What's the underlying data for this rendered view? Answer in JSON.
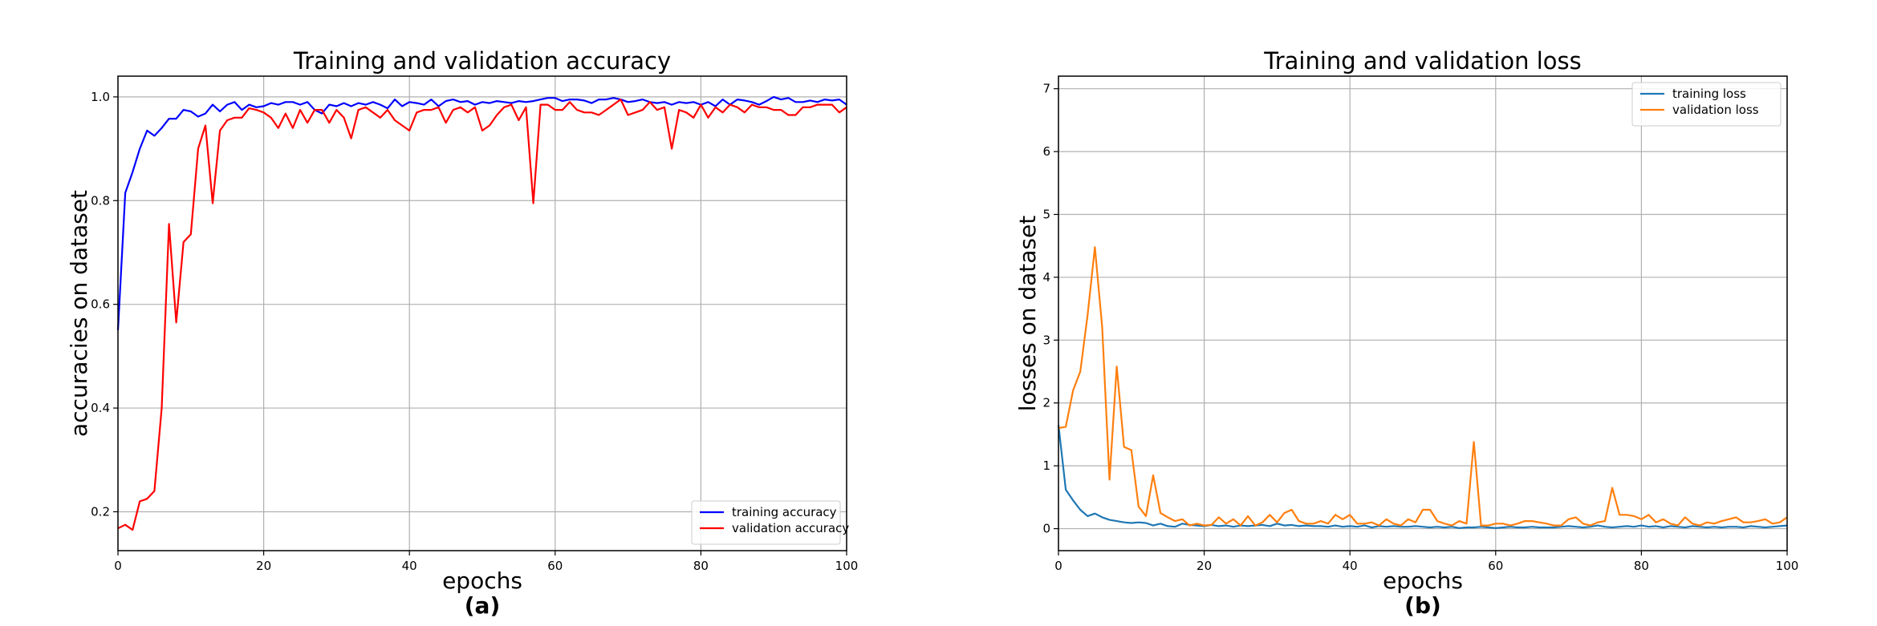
{
  "chart_data": [
    {
      "type": "line",
      "title": "Training and validation accuracy",
      "xlabel": "epochs",
      "ylabel": "accuracies on dataset",
      "panel_label": "(a)",
      "xlim": [
        0,
        100
      ],
      "ylim": [
        0.125,
        1.04
      ],
      "xticks": [
        0,
        20,
        40,
        60,
        80,
        100
      ],
      "yticks": [
        0.2,
        0.4,
        0.6,
        0.8,
        1.0
      ],
      "ytick_labels": [
        "0.2",
        "0.4",
        "0.6",
        "0.8",
        "1.0"
      ],
      "grid": true,
      "legend_position": "lower-right",
      "series": [
        {
          "name": "training accuracy",
          "color": "#0000ff",
          "values": [
            0.55,
            0.815,
            0.855,
            0.9,
            0.935,
            0.925,
            0.94,
            0.958,
            0.958,
            0.975,
            0.972,
            0.962,
            0.968,
            0.985,
            0.972,
            0.985,
            0.99,
            0.975,
            0.985,
            0.98,
            0.982,
            0.988,
            0.985,
            0.99,
            0.99,
            0.985,
            0.99,
            0.975,
            0.968,
            0.985,
            0.982,
            0.988,
            0.982,
            0.988,
            0.985,
            0.99,
            0.985,
            0.978,
            0.995,
            0.982,
            0.99,
            0.988,
            0.985,
            0.995,
            0.982,
            0.992,
            0.995,
            0.99,
            0.992,
            0.985,
            0.99,
            0.988,
            0.992,
            0.99,
            0.988,
            0.992,
            0.99,
            0.992,
            0.995,
            0.998,
            0.998,
            0.992,
            0.995,
            0.995,
            0.993,
            0.988,
            0.995,
            0.995,
            0.998,
            0.995,
            0.99,
            0.992,
            0.995,
            0.99,
            0.988,
            0.99,
            0.985,
            0.99,
            0.988,
            0.99,
            0.985,
            0.99,
            0.982,
            0.995,
            0.985,
            0.995,
            0.993,
            0.99,
            0.985,
            0.992,
            1.0,
            0.995,
            0.998,
            0.99,
            0.99,
            0.993,
            0.99,
            0.995,
            0.993,
            0.995,
            0.985
          ]
        },
        {
          "name": "validation accuracy",
          "color": "#ff0000",
          "values": [
            0.168,
            0.175,
            0.165,
            0.22,
            0.225,
            0.24,
            0.4,
            0.755,
            0.565,
            0.72,
            0.735,
            0.9,
            0.945,
            0.795,
            0.935,
            0.955,
            0.96,
            0.96,
            0.978,
            0.975,
            0.97,
            0.96,
            0.94,
            0.968,
            0.94,
            0.975,
            0.95,
            0.975,
            0.975,
            0.95,
            0.975,
            0.96,
            0.92,
            0.975,
            0.98,
            0.97,
            0.96,
            0.975,
            0.955,
            0.945,
            0.935,
            0.97,
            0.975,
            0.975,
            0.98,
            0.95,
            0.975,
            0.98,
            0.97,
            0.98,
            0.935,
            0.945,
            0.965,
            0.98,
            0.985,
            0.955,
            0.98,
            0.795,
            0.985,
            0.985,
            0.975,
            0.975,
            0.99,
            0.975,
            0.97,
            0.97,
            0.965,
            0.975,
            0.985,
            0.995,
            0.965,
            0.97,
            0.975,
            0.99,
            0.975,
            0.98,
            0.9,
            0.975,
            0.97,
            0.96,
            0.985,
            0.96,
            0.98,
            0.97,
            0.985,
            0.98,
            0.97,
            0.985,
            0.98,
            0.98,
            0.975,
            0.975,
            0.965,
            0.965,
            0.98,
            0.98,
            0.985,
            0.985,
            0.985,
            0.97,
            0.98
          ]
        }
      ]
    },
    {
      "type": "line",
      "title": "Training and validation loss",
      "xlabel": "epochs",
      "ylabel": "losses on dataset",
      "panel_label": "(b)",
      "xlim": [
        0,
        100
      ],
      "ylim": [
        -0.35,
        7.2
      ],
      "xticks": [
        0,
        20,
        40,
        60,
        80,
        100
      ],
      "yticks": [
        0,
        1,
        2,
        3,
        4,
        5,
        6,
        7
      ],
      "ytick_labels": [
        "0",
        "1",
        "2",
        "3",
        "4",
        "5",
        "6",
        "7"
      ],
      "grid": true,
      "legend_position": "upper-right",
      "series": [
        {
          "name": "training loss",
          "color": "#1f77b4",
          "values": [
            1.65,
            0.62,
            0.45,
            0.3,
            0.2,
            0.24,
            0.18,
            0.14,
            0.12,
            0.1,
            0.09,
            0.1,
            0.09,
            0.05,
            0.08,
            0.04,
            0.03,
            0.08,
            0.06,
            0.05,
            0.04,
            0.06,
            0.04,
            0.05,
            0.03,
            0.05,
            0.04,
            0.05,
            0.06,
            0.04,
            0.08,
            0.05,
            0.06,
            0.04,
            0.05,
            0.04,
            0.04,
            0.03,
            0.05,
            0.03,
            0.04,
            0.03,
            0.05,
            0.02,
            0.04,
            0.03,
            0.04,
            0.03,
            0.03,
            0.04,
            0.03,
            0.02,
            0.03,
            0.02,
            0.03,
            0.01,
            0.02,
            0.02,
            0.03,
            0.02,
            0.01,
            0.02,
            0.03,
            0.02,
            0.02,
            0.03,
            0.02,
            0.02,
            0.02,
            0.03,
            0.04,
            0.03,
            0.02,
            0.03,
            0.05,
            0.03,
            0.02,
            0.03,
            0.04,
            0.03,
            0.05,
            0.03,
            0.04,
            0.02,
            0.04,
            0.03,
            0.02,
            0.04,
            0.03,
            0.02,
            0.03,
            0.02,
            0.03,
            0.03,
            0.02,
            0.04,
            0.03,
            0.02,
            0.03,
            0.04,
            0.05
          ]
        },
        {
          "name": "validation loss",
          "color": "#ff7f0e",
          "values": [
            1.6,
            1.62,
            2.2,
            2.5,
            3.4,
            4.48,
            3.2,
            0.78,
            2.58,
            1.3,
            1.25,
            0.35,
            0.2,
            0.85,
            0.25,
            0.18,
            0.12,
            0.15,
            0.05,
            0.08,
            0.05,
            0.06,
            0.18,
            0.08,
            0.15,
            0.05,
            0.2,
            0.05,
            0.1,
            0.22,
            0.1,
            0.25,
            0.3,
            0.12,
            0.08,
            0.08,
            0.12,
            0.08,
            0.22,
            0.15,
            0.22,
            0.08,
            0.08,
            0.1,
            0.05,
            0.15,
            0.08,
            0.05,
            0.15,
            0.1,
            0.3,
            0.3,
            0.12,
            0.08,
            0.05,
            0.12,
            0.08,
            1.38,
            0.05,
            0.05,
            0.08,
            0.08,
            0.05,
            0.08,
            0.12,
            0.12,
            0.1,
            0.08,
            0.05,
            0.05,
            0.15,
            0.18,
            0.08,
            0.05,
            0.1,
            0.12,
            0.65,
            0.22,
            0.22,
            0.2,
            0.15,
            0.22,
            0.1,
            0.15,
            0.08,
            0.05,
            0.18,
            0.08,
            0.05,
            0.1,
            0.08,
            0.12,
            0.15,
            0.18,
            0.1,
            0.1,
            0.12,
            0.15,
            0.08,
            0.1,
            0.18
          ]
        }
      ]
    }
  ]
}
